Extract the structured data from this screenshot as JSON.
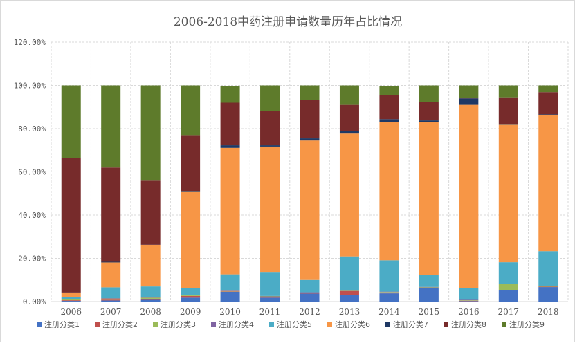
{
  "chart_data": {
    "type": "bar",
    "stacked": true,
    "title": "2006-2018中药注册申请数量历年占比情况",
    "categories": [
      "2006",
      "2007",
      "2008",
      "2009",
      "2010",
      "2011",
      "2012",
      "2013",
      "2014",
      "2015",
      "2016",
      "2017",
      "2018"
    ],
    "ylim": [
      0,
      1.2
    ],
    "yticks": [
      0,
      0.2,
      0.4,
      0.6,
      0.8,
      1.0,
      1.2
    ],
    "ytick_labels": [
      "0.00%",
      "20.00%",
      "40.00%",
      "60.00%",
      "80.00%",
      "100.00%",
      "120.00%"
    ],
    "grid": true,
    "legend_position": "bottom",
    "series": [
      {
        "name": "注册分类1",
        "color": "#4472C4",
        "values": [
          0.003,
          0.005,
          0.008,
          0.018,
          0.045,
          0.018,
          0.037,
          0.03,
          0.038,
          0.062,
          0.002,
          0.052,
          0.067
        ]
      },
      {
        "name": "注册分类2",
        "color": "#C0504D",
        "values": [
          0.003,
          0.004,
          0.005,
          0.008,
          0.002,
          0.004,
          0.002,
          0.018,
          0.004,
          0.002,
          0.002,
          0.002,
          0.002
        ]
      },
      {
        "name": "注册分类3",
        "color": "#9BBB59",
        "values": [
          0.004,
          0.005,
          0.005,
          0.003,
          0.002,
          0.002,
          0.002,
          0.002,
          0.002,
          0.002,
          0.002,
          0.026,
          0.002
        ]
      },
      {
        "name": "注册分类4",
        "color": "#8064A2",
        "values": [
          0.002,
          0.002,
          0.002,
          0.003,
          0.002,
          0.002,
          0.002,
          0.002,
          0.002,
          0.002,
          0.002,
          0.002,
          0.002
        ]
      },
      {
        "name": "注册分类5",
        "color": "#4BACC6",
        "values": [
          0.01,
          0.05,
          0.05,
          0.03,
          0.075,
          0.108,
          0.057,
          0.157,
          0.145,
          0.055,
          0.054,
          0.1,
          0.16
        ]
      },
      {
        "name": "注册分类6",
        "color": "#F79646",
        "values": [
          0.018,
          0.115,
          0.19,
          0.448,
          0.585,
          0.583,
          0.645,
          0.568,
          0.64,
          0.707,
          0.848,
          0.636,
          0.63
        ]
      },
      {
        "name": "注册分类7",
        "color": "#1F3864",
        "values": [
          0.002,
          0.003,
          0.003,
          0.002,
          0.012,
          0.006,
          0.01,
          0.013,
          0.013,
          0.008,
          0.03,
          0.003,
          0.003
        ]
      },
      {
        "name": "注册分类8",
        "color": "#772B2B",
        "values": [
          0.623,
          0.436,
          0.296,
          0.258,
          0.197,
          0.157,
          0.178,
          0.12,
          0.11,
          0.085,
          0.003,
          0.124,
          0.103
        ]
      },
      {
        "name": "注册分类9",
        "color": "#5E7B2B",
        "values": [
          0.335,
          0.38,
          0.441,
          0.23,
          0.078,
          0.12,
          0.067,
          0.09,
          0.044,
          0.077,
          0.057,
          0.055,
          0.031
        ]
      }
    ]
  }
}
